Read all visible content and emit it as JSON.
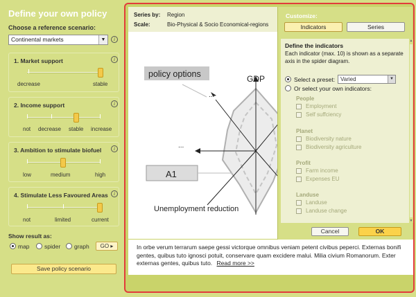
{
  "left": {
    "title": "Define your own policy",
    "ref_label": "Choose a reference scenario:",
    "ref_value": "Continental markets",
    "boxes": [
      {
        "title": "1. Market support",
        "labels": [
          "decrease",
          "stable"
        ],
        "value": "stable"
      },
      {
        "title": "2. Income support",
        "labels": [
          "not",
          "decrease",
          "stable",
          "increase"
        ],
        "value": "stable"
      },
      {
        "title": "3. Ambition to stimulate biofuel",
        "labels": [
          "low",
          "medium",
          "high"
        ],
        "value": "medium"
      },
      {
        "title": "4. Stimulate Less Favoured Areas",
        "labels": [
          "not",
          "limited",
          "current"
        ],
        "value": "current"
      }
    ],
    "show_label": "Show result as:",
    "show_options": [
      "map",
      "spider",
      "graph"
    ],
    "show_selected": "map",
    "go_label": "GO ▸",
    "save_label": "Save policy scenario"
  },
  "series": {
    "series_by_label": "Series by:",
    "series_by_value": "Region",
    "scale_label": "Scale:",
    "scale_value": "Bio-Physical & Socio Economical-regions"
  },
  "spider": {
    "policy_options": "policy options",
    "gdp": "GDP",
    "a1": "A1",
    "unemployment": "Unemployment reduction",
    "dots": "..."
  },
  "customize": {
    "title": "Customize:",
    "tab_indicators": "Indicators",
    "tab_series": "Series",
    "define_title": "Define the indicators",
    "define_text": "Each indicator (max. 10) is shown as a separate axis in the spider diagram.",
    "preset_label": "Select a preset:",
    "preset_value": "Varied",
    "own_label": "Or select your own indicators:",
    "groups": [
      {
        "name": "People",
        "items": [
          "Employment",
          "Self suffciency"
        ]
      },
      {
        "name": "Planet",
        "items": [
          "Biodiversity nature",
          "Biodiversity agriculture"
        ]
      },
      {
        "name": "Profit",
        "items": [
          "Farm income",
          "Expenses EU"
        ]
      },
      {
        "name": "Landuse",
        "items": [
          "Landuse",
          "Landuse change"
        ]
      }
    ],
    "cancel_label": "Cancel",
    "ok_label": "OK"
  },
  "description": {
    "text": "In orbe verum terrarum saepe gessi victorque omnibus veniam petent civibus peperci. Externas bonifi gentes, quibus tuto ignosci potuit, conservare quam excidere malui. Milia civium Romanorum. Exter externas gentes, quibus tuto.",
    "read_more": "Read more >>"
  },
  "colors": {
    "frame": "#e23b3b",
    "panel": "#d6df87",
    "accent": "#fbd24a"
  }
}
